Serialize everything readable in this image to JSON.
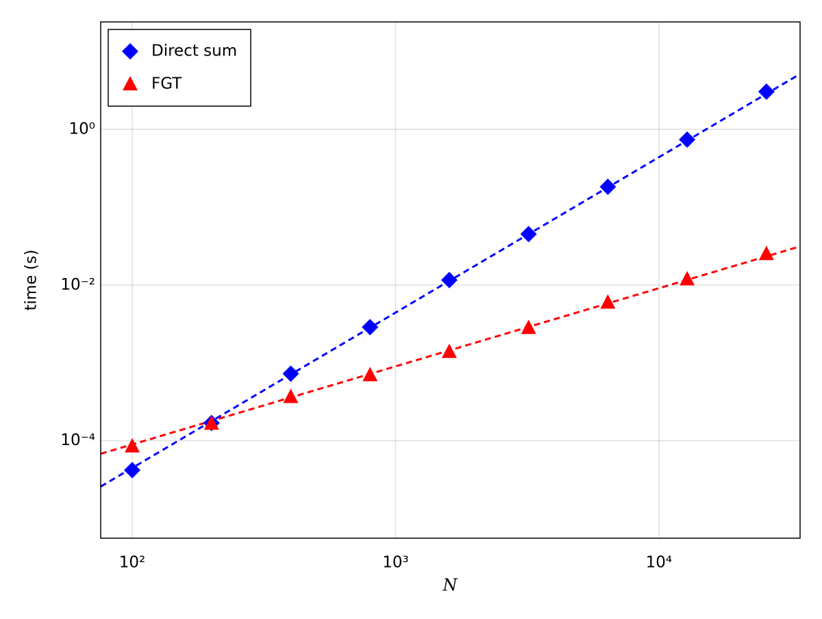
{
  "chart_data": {
    "type": "scatter",
    "log_x": true,
    "log_y": true,
    "grid": true,
    "legend": "top-left",
    "xlabel": "N",
    "ylabel": "time (s)",
    "xlim": [
      75.9,
      34360
    ],
    "ylim": [
      5.6e-06,
      24
    ],
    "xticks": [
      {
        "value": 100,
        "label": "10²"
      },
      {
        "value": 1000,
        "label": "10³"
      },
      {
        "value": 10000,
        "label": "10⁴"
      }
    ],
    "yticks": [
      {
        "value": 0.0001,
        "label": "10⁻⁴"
      },
      {
        "value": 0.01,
        "label": "10⁻²"
      },
      {
        "value": 1,
        "label": "10⁰"
      }
    ],
    "series": [
      {
        "name": "Direct sum",
        "color": "#0000ff",
        "marker": "diamond",
        "x": [
          100,
          200,
          400,
          800,
          1600,
          3200,
          6400,
          12800,
          25600
        ],
        "values": [
          4.19e-05,
          0.000169,
          0.000727,
          0.00288,
          0.0116,
          0.0452,
          0.183,
          0.738,
          3.05
        ]
      },
      {
        "name": "FGT",
        "color": "#ff0000",
        "marker": "triangle",
        "x": [
          100,
          200,
          400,
          800,
          1600,
          3200,
          6400,
          12800,
          25600
        ],
        "values": [
          8.5e-05,
          0.000166,
          0.000366,
          0.000698,
          0.00139,
          0.00282,
          0.00597,
          0.0119,
          0.0251
        ]
      },
      {
        "color": "#0000ff",
        "line": "dashed",
        "x": [
          75.9,
          34360
        ],
        "values": [
          2.58e-05,
          5.15
        ]
      },
      {
        "color": "#ff0000",
        "line": "dashed",
        "x": [
          75.9,
          34360
        ],
        "values": [
          6.8e-05,
          0.0314
        ]
      }
    ]
  }
}
